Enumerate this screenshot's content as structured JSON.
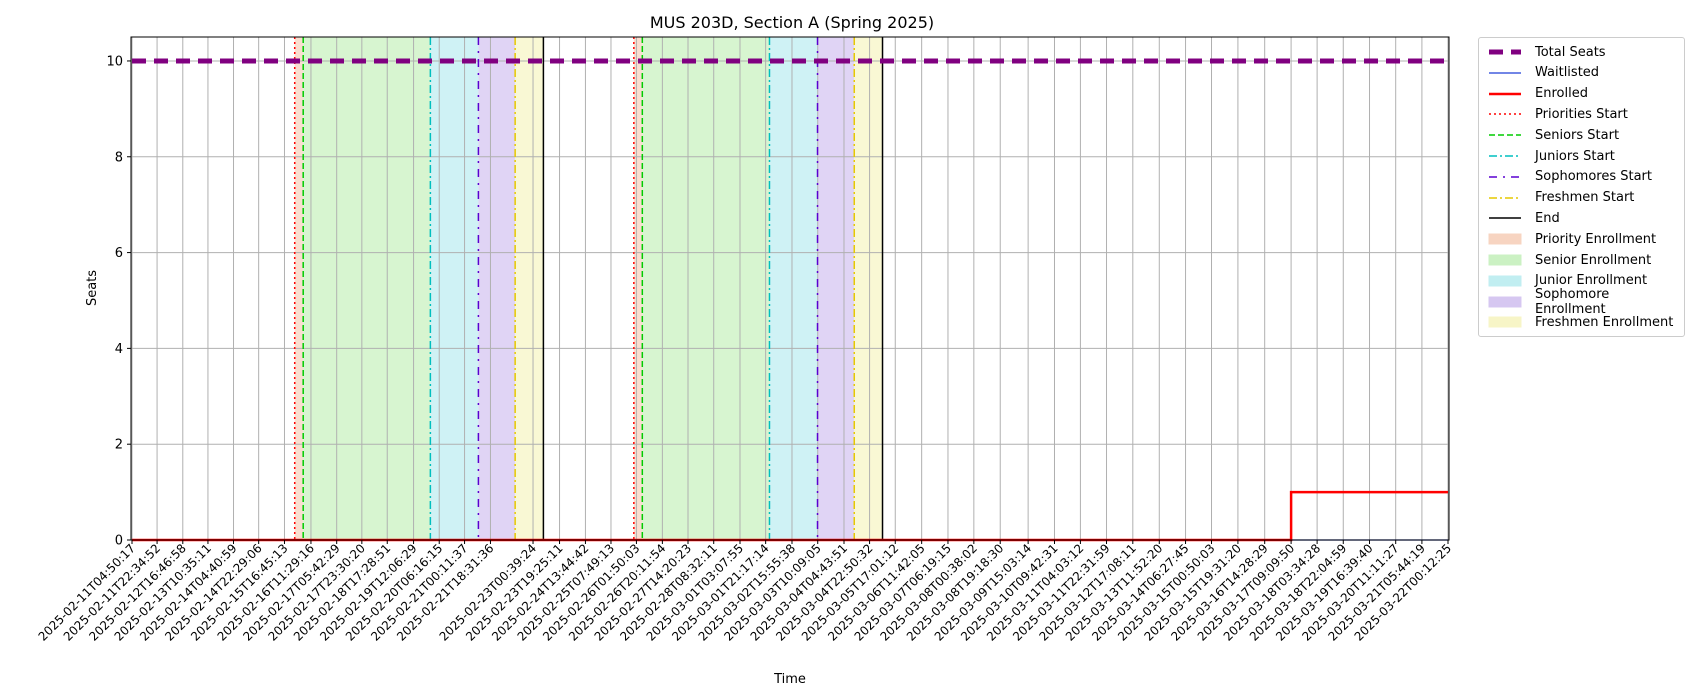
{
  "chart_data": {
    "type": "line",
    "title": "MUS 203D, Section A (Spring 2025)",
    "xlabel": "Time",
    "ylabel": "Seats",
    "ylim": [
      0,
      10.5
    ],
    "yticks": [
      0,
      2,
      4,
      6,
      8,
      10
    ],
    "grid": true,
    "legend_position": "outside-right",
    "xticks": [
      "2025-02-11T04:50:17",
      "2025-02-11T22:34:52",
      "2025-02-12T16:46:58",
      "2025-02-13T10:35:11",
      "2025-02-14T04:40:59",
      "2025-02-14T22:29:06",
      "2025-02-15T16:45:13",
      "2025-02-16T11:29:16",
      "2025-02-17T05:42:29",
      "2025-02-17T23:30:20",
      "2025-02-18T17:28:51",
      "2025-02-19T12:06:29",
      "2025-02-20T06:16:15",
      "2025-02-21T00:11:37",
      "2025-02-21T18:31:36",
      "2025-02-23T00:39:24",
      "2025-02-23T19:25:11",
      "2025-02-24T13:44:42",
      "2025-02-25T07:49:13",
      "2025-02-26T01:50:03",
      "2025-02-26T20:11:54",
      "2025-02-27T14:20:23",
      "2025-02-28T08:32:11",
      "2025-03-01T03:07:55",
      "2025-03-01T21:17:14",
      "2025-03-02T15:55:38",
      "2025-03-03T10:09:05",
      "2025-03-04T04:43:51",
      "2025-03-04T22:50:32",
      "2025-03-05T17:01:12",
      "2025-03-06T11:42:05",
      "2025-03-07T06:19:15",
      "2025-03-08T00:38:02",
      "2025-03-08T19:18:30",
      "2025-03-09T15:03:14",
      "2025-03-10T09:42:31",
      "2025-03-11T04:03:12",
      "2025-03-11T22:31:59",
      "2025-03-12T17:08:11",
      "2025-03-13T11:52:20",
      "2025-03-14T06:27:45",
      "2025-03-15T00:50:03",
      "2025-03-15T19:31:20",
      "2025-03-16T14:28:29",
      "2025-03-17T09:09:50",
      "2025-03-18T03:34:28",
      "2025-03-18T22:04:59",
      "2025-03-19T16:39:40",
      "2025-03-20T11:11:27",
      "2025-03-21T05:44:19",
      "2025-03-22T00:12:25"
    ],
    "series": [
      {
        "name": "Total Seats",
        "color": "#800080",
        "style": "dashed-thick",
        "x_range": [
          "2025-02-11T04:50:17",
          "2025-03-22T00:12:25"
        ],
        "value": 10
      },
      {
        "name": "Waitlisted",
        "color": "#1f3fd8",
        "style": "solid",
        "points": [
          [
            "2025-02-11T04:50:17",
            0
          ],
          [
            "2025-03-22T00:12:25",
            0
          ]
        ]
      },
      {
        "name": "Enrolled",
        "color": "#ff0000",
        "style": "solid-thick",
        "points": [
          [
            "2025-02-11T04:50:17",
            0
          ],
          [
            "2025-03-17T09:09:50",
            0
          ],
          [
            "2025-03-17T09:09:50",
            1
          ],
          [
            "2025-03-22T00:12:25",
            1
          ]
        ]
      }
    ],
    "markers": [
      {
        "name": "Priorities Start",
        "color": "#ff0000",
        "style": "dotted",
        "x": [
          "2025-02-16T00:00:00",
          "2025-02-26T00:00:00"
        ]
      },
      {
        "name": "Seniors Start",
        "color": "#00cc00",
        "style": "dashed",
        "x": [
          "2025-02-16T06:00:00",
          "2025-02-26T06:00:00"
        ]
      },
      {
        "name": "Juniors Start",
        "color": "#00bfbf",
        "style": "dashdot",
        "x": [
          "2025-02-20T00:00:00",
          "2025-03-02T00:00:00"
        ]
      },
      {
        "name": "Sophomores Start",
        "color": "#5a00d0",
        "style": "dash-dot-loose",
        "x": [
          "2025-02-21T10:00:00",
          "2025-03-03T10:00:00"
        ]
      },
      {
        "name": "Freshmen Start",
        "color": "#e6c800",
        "style": "dashdot",
        "x": [
          "2025-02-22T12:00:00",
          "2025-03-04T12:00:00"
        ]
      },
      {
        "name": "End",
        "color": "#000000",
        "style": "solid",
        "x": [
          "2025-02-23T08:00:00",
          "2025-03-05T08:00:00"
        ]
      }
    ],
    "spans": [
      {
        "name": "Priority Enrollment",
        "color": "#f4c2a8",
        "ranges": [
          [
            "2025-02-16T00:00:00",
            "2025-02-16T06:00:00"
          ],
          [
            "2025-02-26T00:00:00",
            "2025-02-26T06:00:00"
          ]
        ]
      },
      {
        "name": "Senior Enrollment",
        "color": "#b6ecaa",
        "ranges": [
          [
            "2025-02-16T06:00:00",
            "2025-02-20T00:00:00"
          ],
          [
            "2025-02-26T06:00:00",
            "2025-03-02T00:00:00"
          ]
        ]
      },
      {
        "name": "Junior Enrollment",
        "color": "#a8e8ec",
        "ranges": [
          [
            "2025-02-20T00:00:00",
            "2025-02-21T10:00:00"
          ],
          [
            "2025-03-02T00:00:00",
            "2025-03-03T10:00:00"
          ]
        ]
      },
      {
        "name": "Sophomore Enrollment",
        "color": "#c6b0ec",
        "ranges": [
          [
            "2025-02-21T10:00:00",
            "2025-02-22T12:00:00"
          ],
          [
            "2025-03-03T10:00:00",
            "2025-03-04T12:00:00"
          ]
        ]
      },
      {
        "name": "Freshmen Enrollment",
        "color": "#f4f2b0",
        "ranges": [
          [
            "2025-02-22T12:00:00",
            "2025-02-23T08:00:00"
          ],
          [
            "2025-03-04T12:00:00",
            "2025-03-05T08:00:00"
          ]
        ]
      }
    ]
  },
  "legend": {
    "items": [
      {
        "label": "Total Seats"
      },
      {
        "label": "Waitlisted"
      },
      {
        "label": "Enrolled"
      },
      {
        "label": "Priorities Start"
      },
      {
        "label": "Seniors Start"
      },
      {
        "label": "Juniors Start"
      },
      {
        "label": "Sophomores Start"
      },
      {
        "label": "Freshmen Start"
      },
      {
        "label": "End"
      },
      {
        "label": "Priority Enrollment"
      },
      {
        "label": "Senior Enrollment"
      },
      {
        "label": "Junior Enrollment"
      },
      {
        "label": "Sophomore Enrollment"
      },
      {
        "label": "Freshmen Enrollment"
      }
    ]
  }
}
